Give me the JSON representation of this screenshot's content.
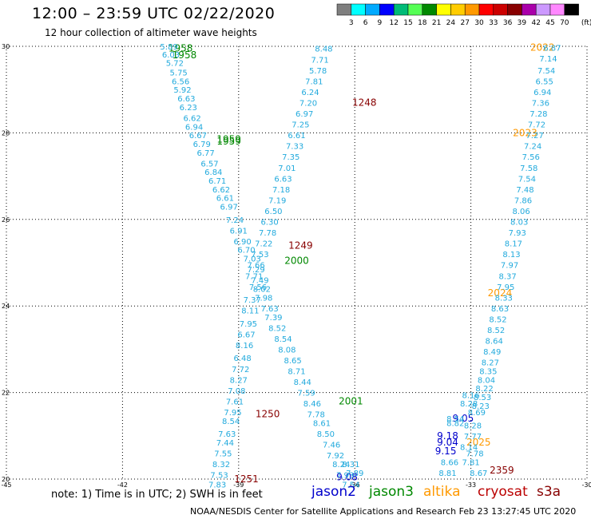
{
  "header": {
    "title": "12:00 – 23:59 UTC 02/22/2020",
    "subtitle": "12 hour collection of altimeter wave heights"
  },
  "color_scale": {
    "unit_label": "(ft)",
    "ticks": [
      "3",
      "6",
      "9",
      "12",
      "15",
      "18",
      "21",
      "24",
      "27",
      "30",
      "33",
      "36",
      "39",
      "42",
      "45",
      "70"
    ],
    "colors": [
      "#7f7f7f",
      "#00ffff",
      "#00aaff",
      "#0000ff",
      "#00bb77",
      "#55ff55",
      "#008800",
      "#ffff00",
      "#ffcc00",
      "#ff9900",
      "#ff0000",
      "#cc0000",
      "#880000",
      "#aa00aa",
      "#cc99ff",
      "#ff88ff",
      "#000000"
    ]
  },
  "chart_data": {
    "type": "scatter",
    "xlim": [
      -45,
      -30
    ],
    "ylim": [
      20,
      30
    ],
    "x_ticks": [
      "-45",
      "-42",
      "-39",
      "-36",
      "-33",
      "-30"
    ],
    "y_ticks": [
      "20",
      "22",
      "24",
      "26",
      "28",
      "30"
    ],
    "grid": true,
    "series": [
      {
        "name": "jason2",
        "color": "#0000cc",
        "points": [
          {
            "x": -33.2,
            "y": 21.4,
            "v": "9.05"
          },
          {
            "x": -33.6,
            "y": 21.0,
            "v": "9.18"
          },
          {
            "x": -33.6,
            "y": 20.85,
            "v": "9.04"
          },
          {
            "x": -33.65,
            "y": 20.65,
            "v": "9.15"
          },
          {
            "x": -36.2,
            "y": 20.05,
            "v": "9.08"
          }
        ]
      },
      {
        "name": "jason3",
        "color": "#008800",
        "points": [
          {
            "x": -40.5,
            "y": 29.95,
            "v": "1958"
          },
          {
            "x": -40.4,
            "y": 29.8,
            "v": "1958"
          },
          {
            "x": -39.25,
            "y": 27.85,
            "v": "1959"
          },
          {
            "x": -39.25,
            "y": 27.8,
            "v": "1959"
          },
          {
            "x": -37.5,
            "y": 25.05,
            "v": "2000"
          },
          {
            "x": -36.1,
            "y": 21.8,
            "v": "2001"
          }
        ]
      },
      {
        "name": "altika",
        "color": "#ff9900",
        "points": [
          {
            "x": -31.15,
            "y": 29.97,
            "v": "2022"
          },
          {
            "x": -31.6,
            "y": 28.0,
            "v": "2023"
          },
          {
            "x": -32.25,
            "y": 24.3,
            "v": "2024"
          },
          {
            "x": -32.8,
            "y": 20.85,
            "v": "2025"
          }
        ]
      },
      {
        "name": "cryosat",
        "color": "#bb0000",
        "points": []
      },
      {
        "name": "s3a",
        "color": "#880000",
        "points": [
          {
            "x": -35.75,
            "y": 28.7,
            "v": "1248"
          },
          {
            "x": -37.4,
            "y": 25.4,
            "v": "1249"
          },
          {
            "x": -38.25,
            "y": 21.5,
            "v": "1250"
          },
          {
            "x": -38.8,
            "y": 20.0,
            "v": "1251"
          },
          {
            "x": -32.2,
            "y": 20.2,
            "v": "2359"
          }
        ]
      },
      {
        "name": "swh",
        "color": "#22aadd",
        "points": [
          {
            "x": -40.8,
            "y": 30.0,
            "v": "5.89"
          },
          {
            "x": -40.75,
            "y": 29.82,
            "v": "6.03"
          },
          {
            "x": -40.65,
            "y": 29.62,
            "v": "5.72"
          },
          {
            "x": -40.55,
            "y": 29.4,
            "v": "5.75"
          },
          {
            "x": -40.5,
            "y": 29.2,
            "v": "6.56"
          },
          {
            "x": -40.45,
            "y": 29.0,
            "v": "5.92"
          },
          {
            "x": -40.35,
            "y": 28.8,
            "v": "6.63"
          },
          {
            "x": -40.3,
            "y": 28.6,
            "v": "6.23"
          },
          {
            "x": -40.2,
            "y": 28.35,
            "v": "6.62"
          },
          {
            "x": -40.15,
            "y": 28.15,
            "v": "6.94"
          },
          {
            "x": -40.05,
            "y": 27.95,
            "v": "6.67"
          },
          {
            "x": -39.95,
            "y": 27.75,
            "v": "6.79"
          },
          {
            "x": -39.85,
            "y": 27.55,
            "v": "6.77"
          },
          {
            "x": -39.75,
            "y": 27.3,
            "v": "6.57"
          },
          {
            "x": -39.65,
            "y": 27.1,
            "v": "6.84"
          },
          {
            "x": -39.55,
            "y": 26.9,
            "v": "6.71"
          },
          {
            "x": -39.45,
            "y": 26.7,
            "v": "6.62"
          },
          {
            "x": -39.35,
            "y": 26.5,
            "v": "6.61"
          },
          {
            "x": -39.25,
            "y": 26.3,
            "v": "6.97"
          },
          {
            "x": -39.1,
            "y": 26.0,
            "v": "7.24"
          },
          {
            "x": -39.0,
            "y": 25.75,
            "v": "6.91"
          },
          {
            "x": -38.9,
            "y": 25.5,
            "v": "6.90"
          },
          {
            "x": -38.8,
            "y": 25.3,
            "v": "6.70"
          },
          {
            "x": -38.65,
            "y": 25.1,
            "v": "7.03"
          },
          {
            "x": -38.55,
            "y": 24.85,
            "v": "7.29"
          },
          {
            "x": -38.45,
            "y": 24.6,
            "v": "7.49"
          },
          {
            "x": -38.4,
            "y": 24.4,
            "v": "8.02"
          },
          {
            "x": -38.65,
            "y": 24.15,
            "v": "7.37"
          },
          {
            "x": -38.7,
            "y": 23.9,
            "v": "8.11"
          },
          {
            "x": -38.75,
            "y": 23.6,
            "v": "7.95"
          },
          {
            "x": -38.8,
            "y": 23.35,
            "v": "6.67"
          },
          {
            "x": -38.85,
            "y": 23.1,
            "v": "8.16"
          },
          {
            "x": -38.9,
            "y": 22.8,
            "v": "6.48"
          },
          {
            "x": -38.95,
            "y": 22.55,
            "v": "7.72"
          },
          {
            "x": -39.0,
            "y": 22.3,
            "v": "8.27"
          },
          {
            "x": -39.05,
            "y": 22.05,
            "v": "7.08"
          },
          {
            "x": -39.1,
            "y": 21.8,
            "v": "7.61"
          },
          {
            "x": -39.15,
            "y": 21.55,
            "v": "7.95"
          },
          {
            "x": -39.2,
            "y": 21.35,
            "v": "8.54"
          },
          {
            "x": -39.3,
            "y": 21.05,
            "v": "7.63"
          },
          {
            "x": -39.35,
            "y": 20.85,
            "v": "7.44"
          },
          {
            "x": -39.4,
            "y": 20.6,
            "v": "7.55"
          },
          {
            "x": -39.45,
            "y": 20.35,
            "v": "8.32"
          },
          {
            "x": -39.5,
            "y": 20.1,
            "v": "7.53"
          },
          {
            "x": -39.55,
            "y": 19.88,
            "v": "7.83"
          },
          {
            "x": -36.8,
            "y": 29.95,
            "v": "8.48"
          },
          {
            "x": -36.9,
            "y": 29.7,
            "v": "7.71"
          },
          {
            "x": -36.95,
            "y": 29.45,
            "v": "5.78"
          },
          {
            "x": -37.05,
            "y": 29.2,
            "v": "7.81"
          },
          {
            "x": -37.15,
            "y": 28.95,
            "v": "6.24"
          },
          {
            "x": -37.2,
            "y": 28.7,
            "v": "7.20"
          },
          {
            "x": -37.3,
            "y": 28.45,
            "v": "6.97"
          },
          {
            "x": -37.4,
            "y": 28.2,
            "v": "7.25"
          },
          {
            "x": -37.5,
            "y": 27.95,
            "v": "6.61"
          },
          {
            "x": -37.55,
            "y": 27.7,
            "v": "7.33"
          },
          {
            "x": -37.65,
            "y": 27.45,
            "v": "7.35"
          },
          {
            "x": -37.75,
            "y": 27.2,
            "v": "7.01"
          },
          {
            "x": -37.85,
            "y": 26.95,
            "v": "6.63"
          },
          {
            "x": -37.9,
            "y": 26.7,
            "v": "7.18"
          },
          {
            "x": -38.0,
            "y": 26.45,
            "v": "7.19"
          },
          {
            "x": -38.1,
            "y": 26.2,
            "v": "6.50"
          },
          {
            "x": -38.2,
            "y": 25.95,
            "v": "6.30"
          },
          {
            "x": -38.25,
            "y": 25.7,
            "v": "7.78"
          },
          {
            "x": -38.35,
            "y": 25.45,
            "v": "7.22"
          },
          {
            "x": -38.45,
            "y": 25.2,
            "v": "7.53"
          },
          {
            "x": -38.55,
            "y": 24.95,
            "v": "7.66"
          },
          {
            "x": -38.6,
            "y": 24.7,
            "v": "7.71"
          },
          {
            "x": -38.5,
            "y": 24.45,
            "v": "7.56"
          },
          {
            "x": -38.35,
            "y": 24.2,
            "v": "7.98"
          },
          {
            "x": -38.2,
            "y": 23.95,
            "v": "7.63"
          },
          {
            "x": -38.1,
            "y": 23.75,
            "v": "7.39"
          },
          {
            "x": -38.0,
            "y": 23.5,
            "v": "8.52"
          },
          {
            "x": -37.85,
            "y": 23.25,
            "v": "8.54"
          },
          {
            "x": -37.75,
            "y": 23.0,
            "v": "8.08"
          },
          {
            "x": -37.6,
            "y": 22.75,
            "v": "8.65"
          },
          {
            "x": -37.5,
            "y": 22.5,
            "v": "8.71"
          },
          {
            "x": -37.35,
            "y": 22.25,
            "v": "8.44"
          },
          {
            "x": -37.25,
            "y": 22.0,
            "v": "7.59"
          },
          {
            "x": -37.1,
            "y": 21.75,
            "v": "8.46"
          },
          {
            "x": -37.0,
            "y": 21.5,
            "v": "7.78"
          },
          {
            "x": -36.85,
            "y": 21.3,
            "v": "8.61"
          },
          {
            "x": -36.75,
            "y": 21.05,
            "v": "8.50"
          },
          {
            "x": -36.6,
            "y": 20.8,
            "v": "7.46"
          },
          {
            "x": -36.5,
            "y": 20.55,
            "v": "7.92"
          },
          {
            "x": -36.35,
            "y": 20.35,
            "v": "8.24"
          },
          {
            "x": -36.25,
            "y": 20.1,
            "v": "7.93"
          },
          {
            "x": -36.1,
            "y": 19.88,
            "v": "7.54"
          },
          {
            "x": -30.9,
            "y": 29.97,
            "v": "6.87"
          },
          {
            "x": -31.0,
            "y": 29.72,
            "v": "7.14"
          },
          {
            "x": -31.05,
            "y": 29.45,
            "v": "7.54"
          },
          {
            "x": -31.1,
            "y": 29.2,
            "v": "6.55"
          },
          {
            "x": -31.15,
            "y": 28.95,
            "v": "6.94"
          },
          {
            "x": -31.2,
            "y": 28.7,
            "v": "7.36"
          },
          {
            "x": -31.25,
            "y": 28.45,
            "v": "7.28"
          },
          {
            "x": -31.3,
            "y": 28.2,
            "v": "7.72"
          },
          {
            "x": -31.35,
            "y": 27.95,
            "v": "7.27"
          },
          {
            "x": -31.4,
            "y": 27.7,
            "v": "7.24"
          },
          {
            "x": -31.45,
            "y": 27.45,
            "v": "7.56"
          },
          {
            "x": -31.5,
            "y": 27.2,
            "v": "7.58"
          },
          {
            "x": -31.55,
            "y": 26.95,
            "v": "7.54"
          },
          {
            "x": -31.6,
            "y": 26.7,
            "v": "7.48"
          },
          {
            "x": -31.65,
            "y": 26.45,
            "v": "7.86"
          },
          {
            "x": -31.7,
            "y": 26.2,
            "v": "8.06"
          },
          {
            "x": -31.75,
            "y": 25.95,
            "v": "8.03"
          },
          {
            "x": -31.8,
            "y": 25.7,
            "v": "7.93"
          },
          {
            "x": -31.9,
            "y": 25.45,
            "v": "8.17"
          },
          {
            "x": -31.95,
            "y": 25.2,
            "v": "8.13"
          },
          {
            "x": -32.0,
            "y": 24.95,
            "v": "7.97"
          },
          {
            "x": -32.05,
            "y": 24.7,
            "v": "8.37"
          },
          {
            "x": -32.1,
            "y": 24.45,
            "v": "7.95"
          },
          {
            "x": -32.15,
            "y": 24.2,
            "v": "8.33"
          },
          {
            "x": -32.25,
            "y": 23.95,
            "v": "8.63"
          },
          {
            "x": -32.3,
            "y": 23.7,
            "v": "8.52"
          },
          {
            "x": -32.35,
            "y": 23.45,
            "v": "8.52"
          },
          {
            "x": -32.4,
            "y": 23.2,
            "v": "8.64"
          },
          {
            "x": -32.45,
            "y": 22.95,
            "v": "8.49"
          },
          {
            "x": -32.5,
            "y": 22.7,
            "v": "8.27"
          },
          {
            "x": -32.55,
            "y": 22.5,
            "v": "8.35"
          },
          {
            "x": -32.6,
            "y": 22.3,
            "v": "8.04"
          },
          {
            "x": -32.65,
            "y": 22.1,
            "v": "8.22"
          },
          {
            "x": -32.7,
            "y": 21.9,
            "v": "8.53"
          },
          {
            "x": -32.75,
            "y": 21.7,
            "v": "8.23"
          },
          {
            "x": -33.0,
            "y": 21.95,
            "v": "8.16"
          },
          {
            "x": -33.05,
            "y": 21.75,
            "v": "8.28"
          },
          {
            "x": -32.85,
            "y": 21.55,
            "v": "8.69"
          },
          {
            "x": -32.95,
            "y": 21.25,
            "v": "8.28"
          },
          {
            "x": -33.4,
            "y": 21.3,
            "v": "8.82"
          },
          {
            "x": -33.4,
            "y": 21.4,
            "v": "8.54"
          },
          {
            "x": -32.95,
            "y": 21.0,
            "v": "7.77"
          },
          {
            "x": -33.05,
            "y": 20.75,
            "v": "8.14"
          },
          {
            "x": -32.9,
            "y": 20.6,
            "v": "7.78"
          },
          {
            "x": -33.55,
            "y": 20.4,
            "v": "8.66"
          },
          {
            "x": -33.0,
            "y": 20.4,
            "v": "7.81"
          },
          {
            "x": -33.6,
            "y": 20.15,
            "v": "8.81"
          },
          {
            "x": -32.8,
            "y": 20.15,
            "v": "8.67"
          },
          {
            "x": -36.1,
            "y": 20.35,
            "v": "8.31"
          },
          {
            "x": -36.0,
            "y": 20.15,
            "v": "7.89"
          }
        ]
      }
    ]
  },
  "legend": {
    "items": [
      {
        "label": "jason2",
        "color": "#0000cc"
      },
      {
        "label": "jason3",
        "color": "#008800"
      },
      {
        "label": "altika",
        "color": "#ff9900"
      },
      {
        "label": "cryosat",
        "color": "#bb0000"
      },
      {
        "label": "s3a",
        "color": "#880000"
      }
    ]
  },
  "note": "note:  1) Time is in UTC; 2) SWH is in feet",
  "footer": "NOAA/NESDIS Center for Satellite Applications and Research    Feb 23 13:27:45 UTC 2020"
}
